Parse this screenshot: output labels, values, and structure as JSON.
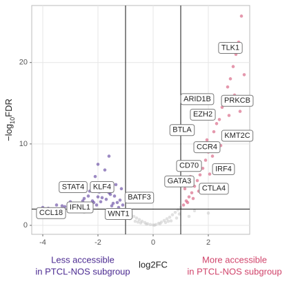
{
  "chart_data": {
    "type": "scatter",
    "xlabel": "log2FC",
    "ylabel": {
      "prefix": "−log",
      "sub": "10",
      "suffix": "FDR"
    },
    "xlim": [
      -4.4,
      3.5
    ],
    "ylim": [
      -1.1,
      27
    ],
    "xticks": [
      -4,
      -2,
      0,
      2
    ],
    "yticks": [
      0,
      10,
      20
    ],
    "grid": true,
    "vlines": [
      -1,
      1
    ],
    "hline": 2,
    "series": [
      {
        "color": "#c8c8c8",
        "x": [
          -1.0,
          -0.9,
          -0.8,
          -0.7,
          -0.6,
          -0.5,
          -0.4,
          -0.3,
          -0.2,
          -0.1,
          0,
          0.1,
          0.2,
          0.3,
          0.4,
          0.5,
          0.6,
          0.7,
          0.8,
          0.9,
          1.0,
          -0.85,
          -0.65,
          -0.45,
          -0.25,
          0.25,
          0.45,
          0.65,
          0.85,
          -2.5,
          -3.0,
          1.5,
          2.0,
          -0.95,
          0.95,
          -1.5,
          1.3,
          -0.55,
          0.55,
          0.05
        ],
        "values": [
          1.8,
          1.5,
          1.3,
          1.1,
          0.9,
          0.7,
          0.5,
          0.35,
          0.2,
          0.1,
          0.05,
          0.1,
          0.25,
          0.4,
          0.6,
          0.8,
          1.0,
          1.3,
          1.6,
          1.9,
          2.2,
          0.8,
          0.5,
          0.3,
          0.15,
          0.2,
          0.35,
          0.55,
          0.9,
          1.6,
          1.7,
          1.8,
          1.5,
          1.2,
          1.4,
          1.2,
          1.1,
          0.4,
          0.5,
          0.02
        ]
      },
      {
        "color": "#4b2a91",
        "x": [
          -1.1,
          -1.2,
          -1.3,
          -1.4,
          -1.5,
          -1.6,
          -1.7,
          -1.8,
          -1.9,
          -2.0,
          -2.1,
          -2.2,
          -2.3,
          -2.4,
          -2.5,
          -2.6,
          -2.7,
          -2.8,
          -3.0,
          -3.2,
          -3.5,
          -3.8,
          -4.0,
          -1.15,
          -1.35,
          -1.55,
          -1.75,
          -1.95,
          -2.15,
          -2.35,
          -1.25,
          -1.45,
          -1.65,
          -1.85,
          -2.05,
          -2.55,
          -2.9,
          -3.3,
          -1.6,
          -2.0
        ],
        "values": [
          2.5,
          3.1,
          2.8,
          3.6,
          2.4,
          4.0,
          3.2,
          4.7,
          2.9,
          3.5,
          6.0,
          3.0,
          4.2,
          2.6,
          3.3,
          5.2,
          2.7,
          2.4,
          2.9,
          2.3,
          2.5,
          2.1,
          2.2,
          4.5,
          5.0,
          3.8,
          6.8,
          4.1,
          2.8,
          3.6,
          2.2,
          2.7,
          4.9,
          3.4,
          2.5,
          3.0,
          4.7,
          2.4,
          8.5,
          7.5
        ]
      },
      {
        "color": "#d0436a",
        "x": [
          1.1,
          1.2,
          1.3,
          1.4,
          1.5,
          1.6,
          1.7,
          1.8,
          1.9,
          2.0,
          2.1,
          2.2,
          2.3,
          2.4,
          2.5,
          2.6,
          2.7,
          2.8,
          2.9,
          3.0,
          3.1,
          3.2,
          3.3,
          1.15,
          1.35,
          1.55,
          1.75,
          1.95,
          2.15,
          2.35,
          2.55,
          2.75,
          2.95,
          3.15,
          1.25,
          1.45,
          1.65,
          1.85,
          2.05,
          2.45
        ],
        "values": [
          2.5,
          3.0,
          3.5,
          4.0,
          4.8,
          5.5,
          6.2,
          7.0,
          8.0,
          9.0,
          10.0,
          11.5,
          12.5,
          13.0,
          14.5,
          15.5,
          17.0,
          18.0,
          19.5,
          21.0,
          22.5,
          25.7,
          18.5,
          4.5,
          6.0,
          7.5,
          9.2,
          10.5,
          8.5,
          7.0,
          11.0,
          13.5,
          16.0,
          14.0,
          2.8,
          3.3,
          4.2,
          5.0,
          6.3,
          9.8
        ]
      }
    ],
    "labels": [
      {
        "text": "TLK1",
        "x": 2.8,
        "y": 21.8
      },
      {
        "text": "ARID1B",
        "x": 1.6,
        "y": 15.5
      },
      {
        "text": "PRKCB",
        "x": 3.05,
        "y": 15.3
      },
      {
        "text": "EZH2",
        "x": 1.8,
        "y": 13.6
      },
      {
        "text": "BTLA",
        "x": 1.05,
        "y": 11.7
      },
      {
        "text": "KMT2C",
        "x": 3.05,
        "y": 11.0
      },
      {
        "text": "CCR4",
        "x": 1.95,
        "y": 9.6
      },
      {
        "text": "CD70",
        "x": 1.3,
        "y": 7.3
      },
      {
        "text": "IRF4",
        "x": 2.55,
        "y": 6.9
      },
      {
        "text": "GATA3",
        "x": 0.95,
        "y": 5.4
      },
      {
        "text": "CTLA4",
        "x": 2.2,
        "y": 4.5
      },
      {
        "text": "STAT4",
        "x": -2.9,
        "y": 4.7
      },
      {
        "text": "KLF4",
        "x": -1.85,
        "y": 4.7
      },
      {
        "text": "BATF3",
        "x": -0.5,
        "y": 3.4
      },
      {
        "text": "IFNL1",
        "x": -2.65,
        "y": 2.2
      },
      {
        "text": "CCL18",
        "x": -3.7,
        "y": 1.5
      },
      {
        "text": "WNT1",
        "x": -1.25,
        "y": 1.4
      }
    ],
    "annotations": [
      {
        "lines": [
          "Less accessible",
          "in PTCL-NOS subgroup"
        ],
        "color": "#4b2a91"
      },
      {
        "lines": [
          "More accessible",
          "in PTCL-NOS subgroup"
        ],
        "color": "#d0436a"
      }
    ]
  }
}
